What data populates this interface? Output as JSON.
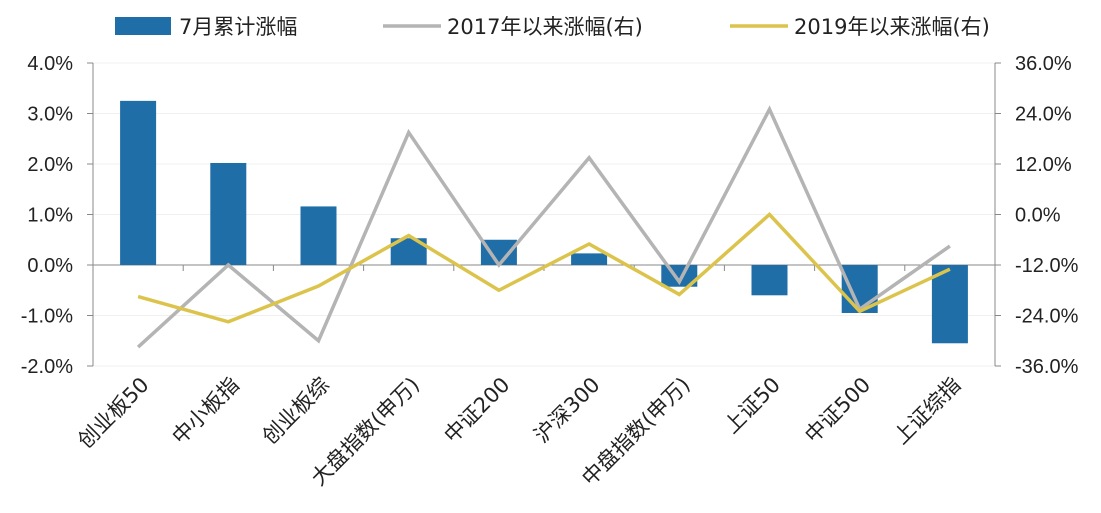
{
  "chart_data": {
    "type": "bar+line",
    "categories": [
      "创业板50",
      "中小板指",
      "创业板综",
      "大盘指数(申万)",
      "中证200",
      "沪深300",
      "中盘指数(申万)",
      "上证50",
      "中证500",
      "上证综指"
    ],
    "series": [
      {
        "name": "7月累计涨幅",
        "type": "bar",
        "axis": "left",
        "color": "#1f6ea8",
        "values": [
          3.25,
          2.02,
          1.16,
          0.53,
          0.5,
          0.23,
          -0.43,
          -0.6,
          -0.95,
          -1.55
        ]
      },
      {
        "name": "2017年以来涨幅(右)",
        "type": "line",
        "axis": "right",
        "color": "#b4b4b4",
        "values": [
          -31.5,
          -12.0,
          -30.0,
          19.5,
          -12.0,
          13.5,
          -16.0,
          25.0,
          -22.5,
          -7.5
        ]
      },
      {
        "name": "2019年以来涨幅(右)",
        "type": "line",
        "axis": "right",
        "color": "#dcc44c",
        "values": [
          -19.5,
          -25.5,
          -17.0,
          -5.0,
          -18.0,
          -7.0,
          -19.0,
          0.0,
          -23.0,
          -13.0
        ]
      }
    ],
    "y_left": {
      "min": -2.0,
      "max": 4.0,
      "ticks": [
        4.0,
        3.0,
        2.0,
        1.0,
        0.0,
        -1.0,
        -2.0
      ],
      "tick_labels": [
        "4.0%",
        "3.0%",
        "2.0%",
        "1.0%",
        "0.0%",
        "-1.0%",
        "-2.0%"
      ]
    },
    "y_right": {
      "min": -36.0,
      "max": 36.0,
      "ticks": [
        36,
        24,
        12,
        0,
        -12,
        -24,
        -36
      ],
      "tick_labels": [
        "36.0%",
        "24.0%",
        "12.0%",
        "0.0%",
        "-12.0%",
        "-24.0%",
        "-36.0%"
      ]
    },
    "legend_position": "top",
    "grid": true
  }
}
